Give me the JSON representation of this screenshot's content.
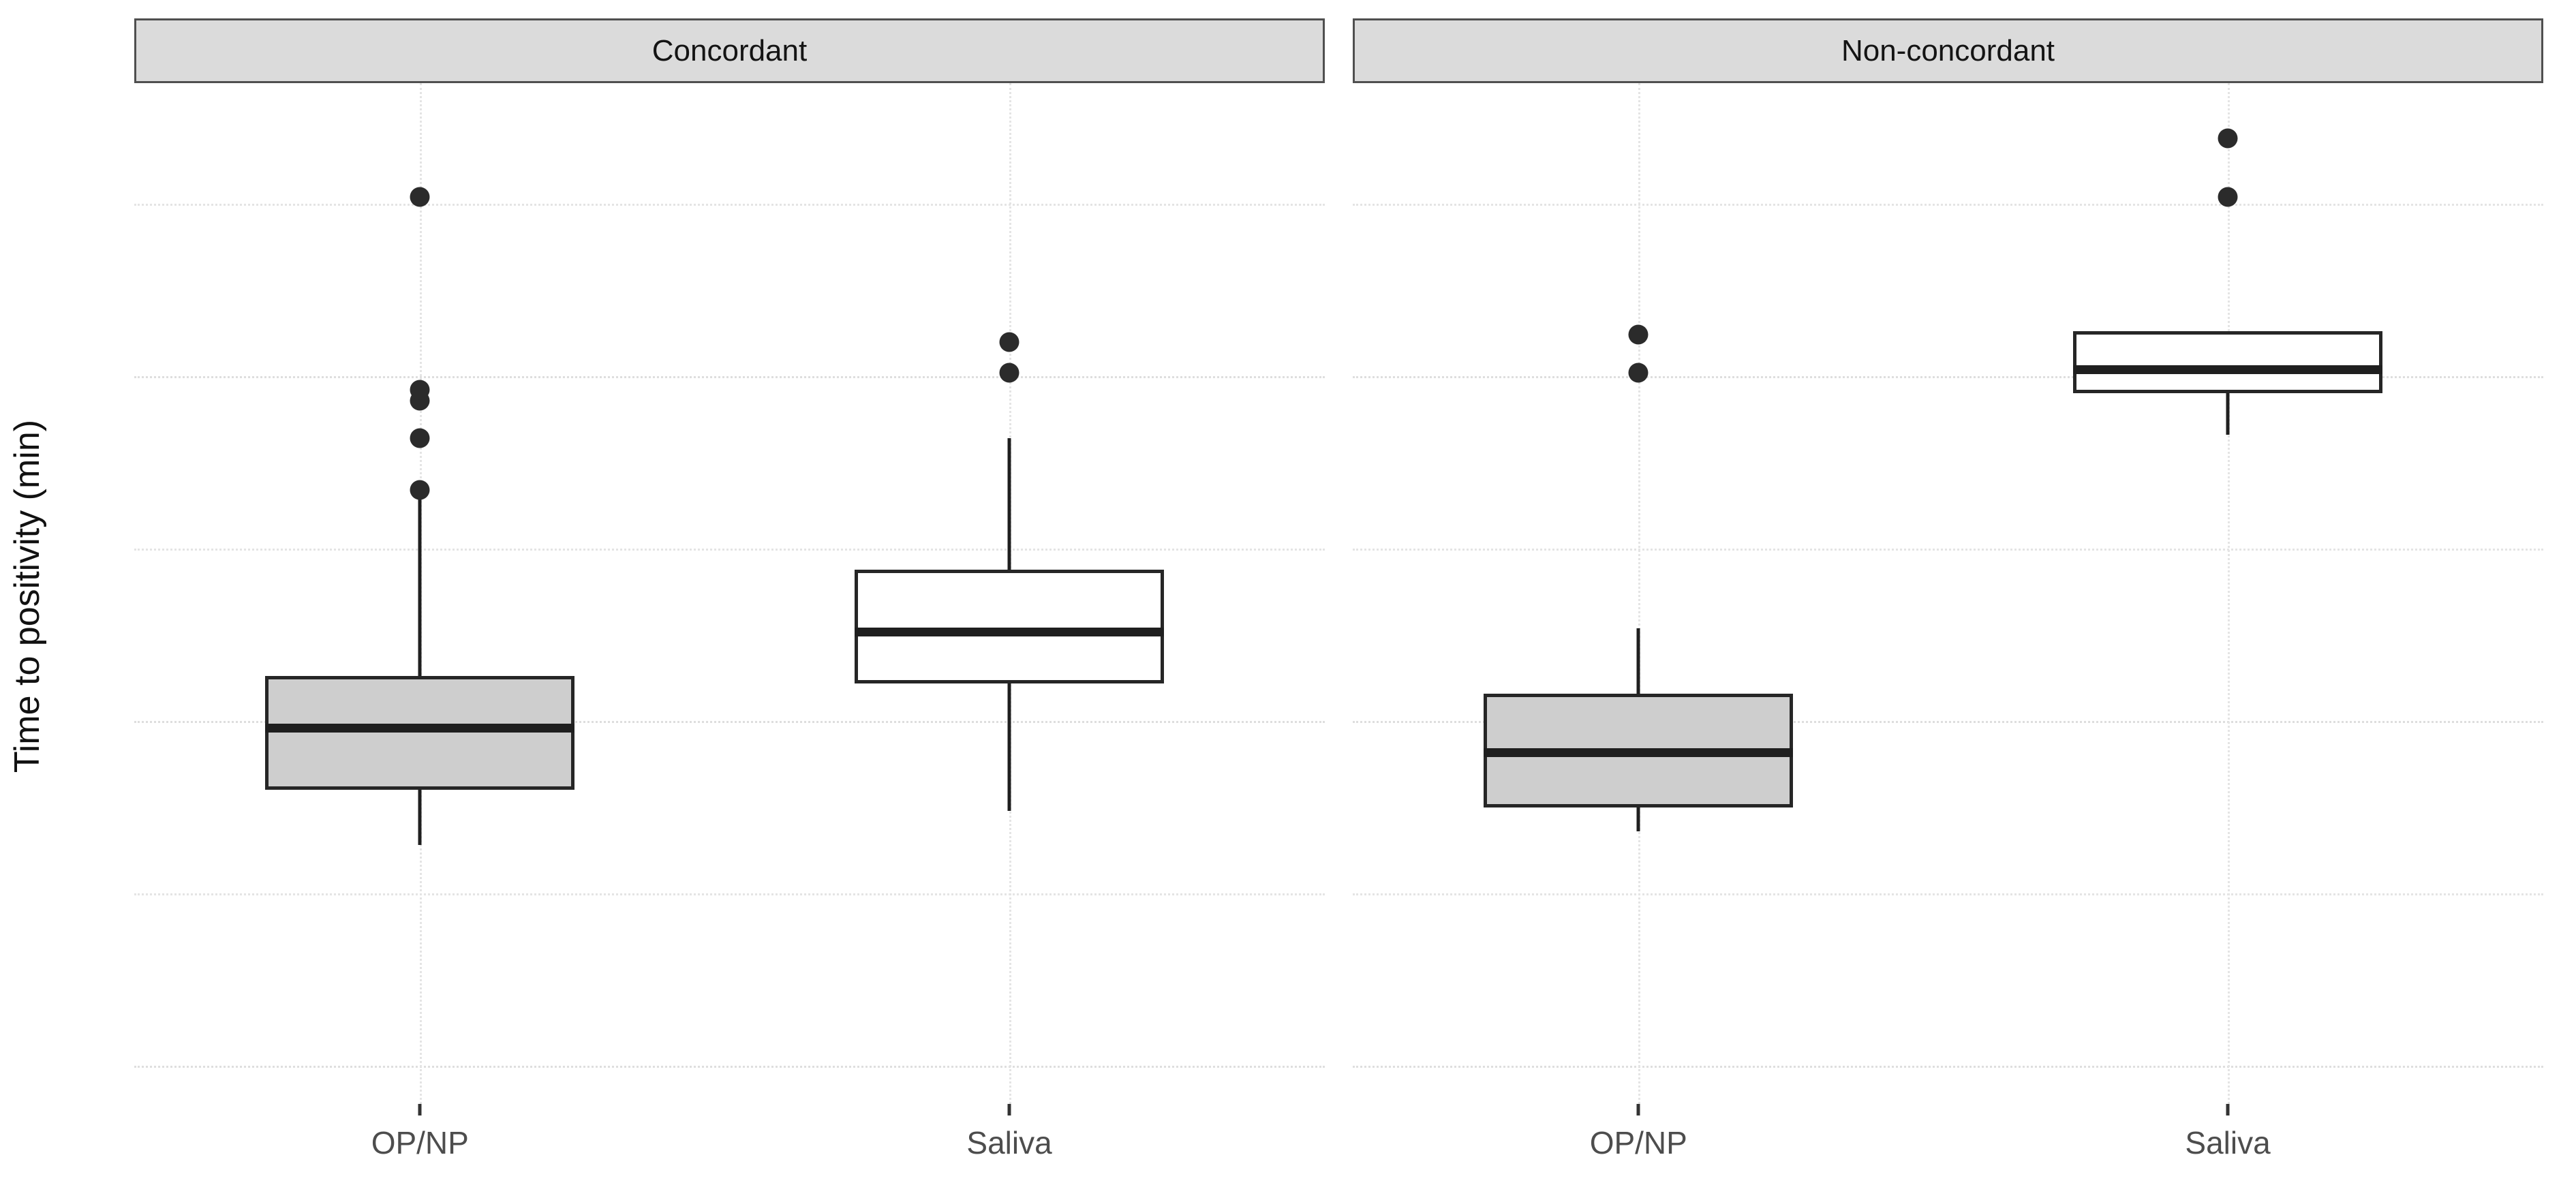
{
  "chart_data": {
    "type": "boxplot",
    "title": "",
    "ylabel": "Time to positivity (min)",
    "xlabel": "",
    "categories": [
      "OP/NP",
      "Saliva"
    ],
    "y_ticks": [
      0,
      10,
      20
    ],
    "y_minor_gridlines": [
      5,
      15,
      25
    ],
    "y_domain": [
      -1.1,
      28.5
    ],
    "grid": "dotted horizontal major and minor, dotted vertical at each category",
    "legend_position": "none",
    "facets": [
      {
        "label": "Concordant",
        "boxes": [
          {
            "category": "OP/NP",
            "fill": "#cecece",
            "whisker_low": 6.4,
            "q1": 8.0,
            "median": 9.8,
            "q3": 11.3,
            "whisker_high": 16.5,
            "outliers": [
              16.7,
              18.2,
              19.3,
              19.6,
              25.2
            ]
          },
          {
            "category": "Saliva",
            "fill": "#ffffff",
            "whisker_low": 7.4,
            "q1": 11.1,
            "median": 12.6,
            "q3": 14.4,
            "whisker_high": 18.2,
            "outliers": [
              20.1,
              21.0
            ]
          }
        ]
      },
      {
        "label": "Non-concordant",
        "boxes": [
          {
            "category": "OP/NP",
            "fill": "#cecece",
            "whisker_low": 6.8,
            "q1": 7.5,
            "median": 9.1,
            "q3": 10.8,
            "whisker_high": 12.7,
            "outliers": [
              20.1,
              21.2
            ]
          },
          {
            "category": "Saliva",
            "fill": "#ffffff",
            "whisker_low": 18.3,
            "q1": 19.5,
            "median": 20.2,
            "q3": 21.3,
            "whisker_high": 21.3,
            "outliers": [
              25.2,
              26.9
            ]
          }
        ]
      }
    ]
  },
  "colors": {
    "background": "#ffffff",
    "strip_fill": "#dbdbdb",
    "strip_border": "#4f4f4f",
    "strip_text": "#141414",
    "box_border": "#262626",
    "median_line": "#1f1f1f",
    "whisker": "#1f1f1f",
    "outlier": "#2b2b2b",
    "gridline_major": "#dedede",
    "gridline_minor": "#e4e4e4",
    "axis_text": "#4d4d4d",
    "tick_mark": "#333333",
    "gray_box_fill": "#cecece",
    "white_box_fill": "#ffffff"
  }
}
